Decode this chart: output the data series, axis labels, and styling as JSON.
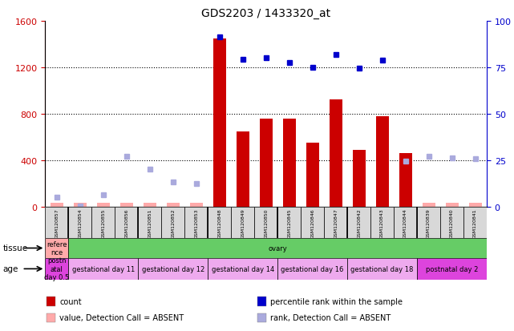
{
  "title": "GDS2203 / 1433320_at",
  "samples": [
    "GSM120857",
    "GSM120854",
    "GSM120855",
    "GSM120856",
    "GSM120851",
    "GSM120852",
    "GSM120853",
    "GSM120848",
    "GSM120849",
    "GSM120850",
    "GSM120845",
    "GSM120846",
    "GSM120847",
    "GSM120842",
    "GSM120843",
    "GSM120844",
    "GSM120839",
    "GSM120840",
    "GSM120841"
  ],
  "bar_values": [
    30,
    30,
    30,
    30,
    30,
    30,
    30,
    1450,
    650,
    760,
    760,
    550,
    920,
    490,
    780,
    460,
    30,
    30,
    30
  ],
  "bar_absent": [
    true,
    true,
    true,
    true,
    true,
    true,
    true,
    false,
    false,
    false,
    false,
    false,
    false,
    false,
    false,
    false,
    true,
    true,
    true
  ],
  "bar_colors_normal": "#cc0000",
  "bar_colors_absent": "#ffaaaa",
  "rank_values": [
    80,
    5,
    100,
    430,
    320,
    210,
    200,
    1460,
    1270,
    1280,
    1240,
    1200,
    1310,
    1190,
    1260,
    390,
    430,
    420,
    410
  ],
  "rank_absent": [
    true,
    true,
    true,
    true,
    true,
    true,
    true,
    false,
    false,
    false,
    false,
    false,
    false,
    false,
    false,
    true,
    true,
    true,
    true
  ],
  "rank_colors_normal": "#0000cc",
  "rank_colors_absent": "#aaaadd",
  "ylim_left": [
    0,
    1600
  ],
  "ylim_right": [
    0,
    100
  ],
  "yticks_left": [
    0,
    400,
    800,
    1200,
    1600
  ],
  "yticks_right": [
    0,
    25,
    50,
    75,
    100
  ],
  "left_axis_color": "#cc0000",
  "right_axis_color": "#0000cc",
  "group_separators": [
    0.5,
    3.5,
    6.5,
    9.5,
    12.5,
    15.5
  ],
  "tissue_row": {
    "label": "tissue",
    "groups": [
      {
        "text": "refere\nnce",
        "color": "#ffaaaa",
        "start": 0,
        "end": 1
      },
      {
        "text": "ovary",
        "color": "#66cc66",
        "start": 1,
        "end": 19
      }
    ]
  },
  "age_row": {
    "label": "age",
    "groups": [
      {
        "text": "postn\natal\nday 0.5",
        "color": "#dd44dd",
        "start": 0,
        "end": 1
      },
      {
        "text": "gestational day 11",
        "color": "#eeaaee",
        "start": 1,
        "end": 4
      },
      {
        "text": "gestational day 12",
        "color": "#eeaaee",
        "start": 4,
        "end": 7
      },
      {
        "text": "gestational day 14",
        "color": "#eeaaee",
        "start": 7,
        "end": 10
      },
      {
        "text": "gestational day 16",
        "color": "#eeaaee",
        "start": 10,
        "end": 13
      },
      {
        "text": "gestational day 18",
        "color": "#eeaaee",
        "start": 13,
        "end": 16
      },
      {
        "text": "postnatal day 2",
        "color": "#dd44dd",
        "start": 16,
        "end": 19
      }
    ]
  },
  "legend_items": [
    {
      "color": "#cc0000",
      "label": "count"
    },
    {
      "color": "#0000cc",
      "label": "percentile rank within the sample"
    },
    {
      "color": "#ffaaaa",
      "label": "value, Detection Call = ABSENT"
    },
    {
      "color": "#aaaadd",
      "label": "rank, Detection Call = ABSENT"
    }
  ],
  "bg_color": "#ffffff",
  "plot_bg_color": "#ffffff",
  "bar_width": 0.55
}
